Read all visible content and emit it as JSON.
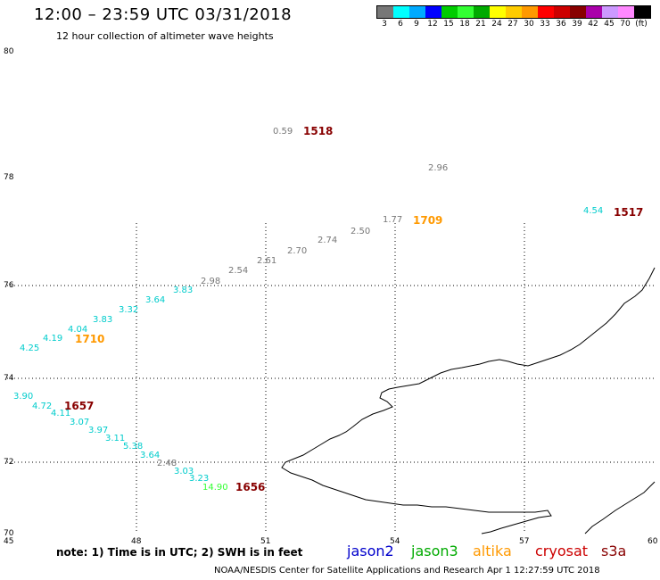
{
  "header": {
    "title": "12:00 – 23:59 UTC 03/31/2018",
    "subtitle": "12 hour collection of altimeter wave heights"
  },
  "legend": {
    "colors": [
      "#777777",
      "#00ffff",
      "#00aaff",
      "#0000ff",
      "#00cc00",
      "#33ff33",
      "#00aa00",
      "#ffff00",
      "#ffcc00",
      "#ff9900",
      "#ff0000",
      "#cc0000",
      "#880000",
      "#aa00aa",
      "#cc99ff",
      "#ff88ff",
      "#000000"
    ],
    "labels": [
      "3",
      "6",
      "9",
      "12",
      "15",
      "18",
      "21",
      "24",
      "27",
      "30",
      "33",
      "36",
      "39",
      "42",
      "45",
      "70",
      "(ft)"
    ]
  },
  "axes": {
    "y_labels": [
      "80",
      "78",
      "76",
      "74",
      "72",
      "70"
    ],
    "x_labels": [
      "45",
      "48",
      "51",
      "54",
      "57",
      "60"
    ]
  },
  "samples": [
    {
      "text": "0.59",
      "color": "#777777"
    },
    {
      "text": "2.96",
      "color": "#777777"
    },
    {
      "text": "4.54",
      "color": "#00cccc"
    },
    {
      "text": "1.77",
      "color": "#777777"
    },
    {
      "text": "2.50",
      "color": "#777777"
    },
    {
      "text": "2.74",
      "color": "#777777"
    },
    {
      "text": "2.70",
      "color": "#777777"
    },
    {
      "text": "2.61",
      "color": "#777777"
    },
    {
      "text": "2.54",
      "color": "#777777"
    },
    {
      "text": "2.98",
      "color": "#777777"
    },
    {
      "text": "3.83",
      "color": "#00cccc"
    },
    {
      "text": "3.64",
      "color": "#00cccc"
    },
    {
      "text": "3.32",
      "color": "#00cccc"
    },
    {
      "text": "3.83",
      "color": "#00cccc"
    },
    {
      "text": "4.04",
      "color": "#00cccc"
    },
    {
      "text": "4.19",
      "color": "#00cccc"
    },
    {
      "text": "4.25",
      "color": "#00cccc"
    },
    {
      "text": "3.90",
      "color": "#00cccc"
    },
    {
      "text": "4.72",
      "color": "#00cccc"
    },
    {
      "text": "4.11",
      "color": "#00cccc"
    },
    {
      "text": "3.07",
      "color": "#00cccc"
    },
    {
      "text": "3.97",
      "color": "#00cccc"
    },
    {
      "text": "3.11",
      "color": "#00cccc"
    },
    {
      "text": "5.38",
      "color": "#00cccc"
    },
    {
      "text": "3.64",
      "color": "#00cccc"
    },
    {
      "text": "2.48",
      "color": "#777777"
    },
    {
      "text": "3.03",
      "color": "#00cccc"
    },
    {
      "text": "3.23",
      "color": "#00cccc"
    },
    {
      "text": "14.90",
      "color": "#33ff33"
    }
  ],
  "passes": [
    {
      "text": "1518",
      "color": "#880000"
    },
    {
      "text": "1709",
      "color": "#ff9900"
    },
    {
      "text": "1517",
      "color": "#880000"
    },
    {
      "text": "1710",
      "color": "#ff9900"
    },
    {
      "text": "1657",
      "color": "#880000"
    },
    {
      "text": "1656",
      "color": "#880000"
    }
  ],
  "footer": {
    "note": "note:  1) Time is in UTC;  2) SWH is in feet",
    "satellites": [
      {
        "name": "jason2",
        "color": "#0000cc"
      },
      {
        "name": "jason3",
        "color": "#00aa00"
      },
      {
        "name": "altika",
        "color": "#ff9900"
      },
      {
        "name": "cryosat",
        "color": "#cc0000"
      },
      {
        "name": "s3a",
        "color": "#880000"
      }
    ],
    "credit": "NOAA/NESDIS Center for Satellite Applications and Research    Apr  1 12:27:59 UTC 2018"
  }
}
